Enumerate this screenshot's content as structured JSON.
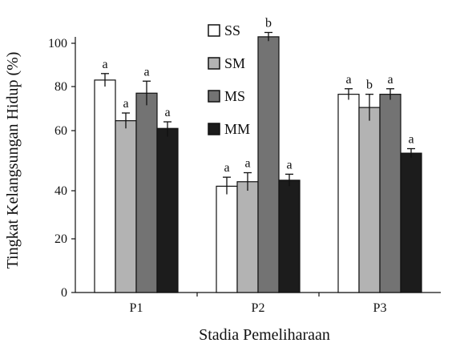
{
  "chart_data": {
    "type": "bar",
    "title": "",
    "xlabel": "Stadia Pemeliharaan",
    "ylabel": "Tingkat Kelangsungan Hidup (%)",
    "categories": [
      "P1",
      "P2",
      "P3"
    ],
    "ylim": [
      0,
      110
    ],
    "yticks": [
      0,
      20,
      40,
      60,
      80,
      100
    ],
    "grid": false,
    "legend_position": "top-center",
    "series": [
      {
        "name": "SS",
        "color": "#ffffff",
        "values": [
          83,
          41.5,
          76.5
        ],
        "errors": [
          3,
          3,
          2.5
        ],
        "labels": [
          "a",
          "a",
          "a"
        ]
      },
      {
        "name": "SM",
        "color": "#b3b3b3",
        "values": [
          64.5,
          43,
          70.5
        ],
        "errors": [
          3.5,
          3,
          6
        ],
        "labels": [
          "a",
          "a",
          "b"
        ]
      },
      {
        "name": "MS",
        "color": "#737373",
        "values": [
          77,
          103,
          76.5
        ],
        "errors": [
          5.5,
          2,
          2.5
        ],
        "labels": [
          "a",
          "b",
          "a"
        ]
      },
      {
        "name": "MM",
        "color": "#1c1c1c",
        "values": [
          61,
          43.5,
          52.5
        ],
        "errors": [
          3,
          2,
          1.5
        ],
        "labels": [
          "a",
          "a",
          "a"
        ]
      }
    ]
  }
}
